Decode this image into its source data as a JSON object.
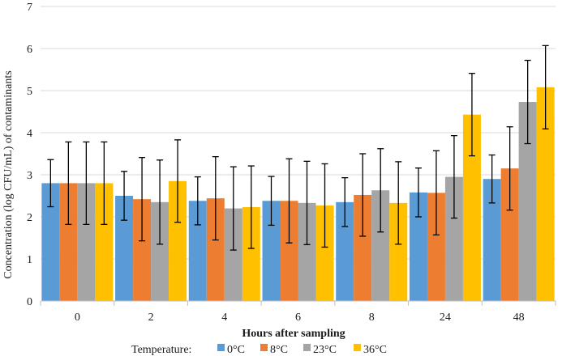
{
  "chart_data": {
    "type": "bar",
    "title": "",
    "xlabel": "Hours after sampling",
    "ylabel": "Concentration  (log  CFU/mL)  of contaminants",
    "ylim": [
      0,
      7
    ],
    "yticks": [
      "0",
      "1",
      "2",
      "3",
      "4",
      "5",
      "6",
      "7"
    ],
    "grid": true,
    "categories": [
      "0",
      "2",
      "4",
      "6",
      "8",
      "24",
      "48"
    ],
    "legend": {
      "title": "Temperature:",
      "position": "bottom"
    },
    "series": [
      {
        "name": "0°C",
        "color": "#5B9BD5",
        "values": [
          2.8,
          2.5,
          2.38,
          2.38,
          2.35,
          2.58,
          2.9
        ],
        "errors": [
          0.56,
          0.58,
          0.57,
          0.58,
          0.58,
          0.58,
          0.57
        ]
      },
      {
        "name": "8°C",
        "color": "#ED7D31",
        "values": [
          2.8,
          2.42,
          2.44,
          2.38,
          2.52,
          2.57,
          3.15
        ],
        "errors": [
          0.98,
          0.99,
          0.99,
          1.0,
          0.98,
          1.0,
          0.99
        ]
      },
      {
        "name": "23°C",
        "color": "#A5A5A5",
        "values": [
          2.8,
          2.35,
          2.2,
          2.33,
          2.63,
          2.95,
          4.73
        ],
        "errors": [
          0.98,
          1.0,
          0.99,
          0.99,
          0.99,
          0.98,
          0.99
        ]
      },
      {
        "name": "36°C",
        "color": "#FFC000",
        "values": [
          2.8,
          2.85,
          2.23,
          2.27,
          2.33,
          4.43,
          5.08
        ],
        "errors": [
          0.98,
          0.98,
          0.98,
          0.99,
          0.98,
          0.98,
          0.99
        ]
      }
    ]
  }
}
